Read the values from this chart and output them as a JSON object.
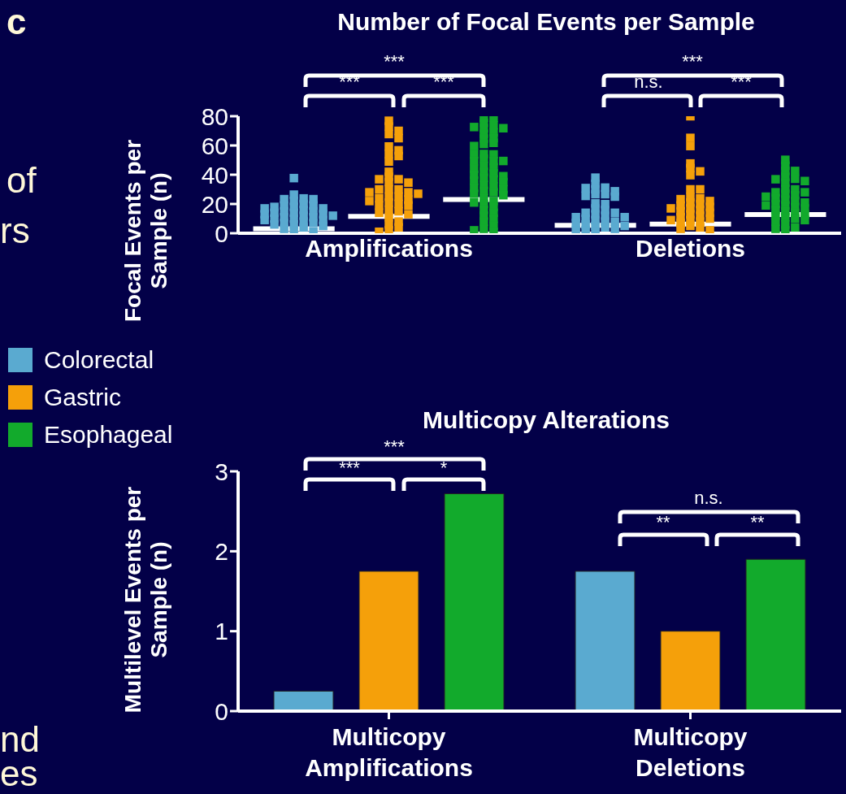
{
  "chart_data": [
    {
      "type": "scatter",
      "title": "Number of Focal Events per Sample",
      "ylabel": "Focal Events per Sample (n)",
      "categories": [
        "Amplifications",
        "Deletions"
      ],
      "ylim": [
        0,
        80
      ],
      "yticks": [
        0,
        20,
        40,
        60,
        80
      ],
      "grid": false,
      "legend": "bottom left",
      "marker": "square",
      "annotations": [
        "***",
        "***",
        "***",
        "***",
        "n.s.",
        "***",
        "c",
        "of",
        "rs",
        "nd",
        "es"
      ],
      "ref_lines": [
        {
          "axis": "y",
          "value": 3,
          "color": "#ffffff"
        },
        {
          "axis": "y",
          "value": 11.5,
          "color": "#ffffff"
        },
        {
          "axis": "y",
          "value": 23,
          "color": "#ffffff"
        },
        {
          "axis": "y",
          "value": 5.4,
          "color": "#ffffff"
        },
        {
          "axis": "y",
          "value": 6.2,
          "color": "#ffffff"
        },
        {
          "axis": "y",
          "value": 12.8,
          "color": "#ffffff"
        }
      ],
      "series": [
        {
          "name": "Colorectal",
          "color": "#5aaad0",
          "x": [
            "Amplifications",
            "Amplifications",
            "Amplifications",
            "Amplifications",
            "Amplifications",
            "Amplifications",
            "Amplifications",
            "Amplifications",
            "Amplifications",
            "Amplifications",
            "Amplifications",
            "Amplifications",
            "Amplifications",
            "Amplifications",
            "Amplifications",
            "Amplifications",
            "Amplifications",
            "Amplifications",
            "Amplifications",
            "Amplifications",
            "Amplifications",
            "Amplifications",
            "Amplifications",
            "Amplifications",
            "Amplifications",
            "Amplifications",
            "Amplifications",
            "Amplifications",
            "Amplifications",
            "Amplifications",
            "Amplifications",
            "Amplifications",
            "Amplifications",
            "Amplifications",
            "Amplifications",
            "Amplifications",
            "Amplifications",
            "Amplifications",
            "Deletions",
            "Deletions",
            "Deletions",
            "Deletions",
            "Deletions",
            "Deletions",
            "Deletions",
            "Deletions",
            "Deletions",
            "Deletions",
            "Deletions",
            "Deletions",
            "Deletions",
            "Deletions",
            "Deletions",
            "Deletions",
            "Deletions",
            "Deletions",
            "Deletions",
            "Deletions",
            "Deletions",
            "Deletions",
            "Deletions",
            "Deletions",
            "Deletions",
            "Deletions",
            "Deletions",
            "Deletions",
            "Deletions",
            "Deletions",
            "Deletions",
            "Deletions",
            "Deletions"
          ],
          "values": [
            37.7,
            26.4,
            23.8,
            23.3,
            22.1,
            23.3,
            19,
            20,
            19,
            18,
            18,
            17,
            16,
            15,
            17,
            15,
            14,
            13,
            14,
            12,
            13,
            11,
            12,
            10,
            11,
            10,
            9,
            8,
            9,
            7,
            6,
            7,
            5,
            6,
            4,
            3,
            2,
            1,
            38,
            33.8,
            30.9,
            28.7,
            30,
            31.2,
            26.7,
            26.7,
            25,
            25.5,
            19.9,
            20.4,
            15.9,
            17,
            14,
            13,
            14,
            12,
            11,
            10,
            11,
            9,
            8,
            7,
            8,
            6,
            5,
            4,
            5,
            3,
            2,
            1,
            2
          ]
        },
        {
          "name": "Gastric",
          "color": "#f5a00a",
          "x": [
            "Amplifications",
            "Amplifications",
            "Amplifications",
            "Amplifications",
            "Amplifications",
            "Amplifications",
            "Amplifications",
            "Amplifications",
            "Amplifications",
            "Amplifications",
            "Amplifications",
            "Amplifications",
            "Amplifications",
            "Amplifications",
            "Amplifications",
            "Amplifications",
            "Amplifications",
            "Amplifications",
            "Amplifications",
            "Amplifications",
            "Amplifications",
            "Amplifications",
            "Amplifications",
            "Amplifications",
            "Amplifications",
            "Amplifications",
            "Amplifications",
            "Amplifications",
            "Amplifications",
            "Amplifications",
            "Amplifications",
            "Amplifications",
            "Amplifications",
            "Amplifications",
            "Amplifications",
            "Amplifications",
            "Amplifications",
            "Amplifications",
            "Amplifications",
            "Amplifications",
            "Amplifications",
            "Deletions",
            "Deletions",
            "Deletions",
            "Deletions",
            "Deletions",
            "Deletions",
            "Deletions",
            "Deletions",
            "Deletions",
            "Deletions",
            "Deletions",
            "Deletions",
            "Deletions",
            "Deletions",
            "Deletions",
            "Deletions",
            "Deletions",
            "Deletions",
            "Deletions",
            "Deletions",
            "Deletions",
            "Deletions",
            "Deletions",
            "Deletions",
            "Deletions",
            "Deletions",
            "Deletions",
            "Deletions",
            "Deletions",
            "Deletions",
            "Deletions",
            "Deletions",
            "Deletions",
            "Deletions"
          ],
          "values": [
            76.9,
            73,
            70,
            67.8,
            65,
            59.3,
            56.7,
            54.2,
            52.8,
            49,
            42,
            38.6,
            36.9,
            36.9,
            34.6,
            35,
            30,
            30,
            30,
            28,
            27,
            28,
            25,
            23,
            24,
            25,
            22,
            19,
            20,
            21,
            19,
            16,
            14,
            15,
            13,
            11,
            8,
            6,
            4,
            2,
            1,
            65.2,
            59.6,
            47.7,
            44.5,
            42.3,
            39.7,
            30,
            23.3,
            23.8,
            24.7,
            21,
            20,
            22,
            19,
            17,
            18,
            16,
            17,
            15,
            13,
            12,
            14,
            11,
            9,
            10,
            8,
            9,
            7,
            5,
            4,
            3,
            2,
            80,
            30
          ]
        },
        {
          "name": "Esophageal",
          "color": "#12aa2c",
          "x": [
            "Amplifications",
            "Amplifications",
            "Amplifications",
            "Amplifications",
            "Amplifications",
            "Amplifications",
            "Amplifications",
            "Amplifications",
            "Amplifications",
            "Amplifications",
            "Amplifications",
            "Amplifications",
            "Amplifications",
            "Amplifications",
            "Amplifications",
            "Amplifications",
            "Amplifications",
            "Amplifications",
            "Amplifications",
            "Amplifications",
            "Amplifications",
            "Amplifications",
            "Amplifications",
            "Amplifications",
            "Amplifications",
            "Amplifications",
            "Amplifications",
            "Amplifications",
            "Amplifications",
            "Amplifications",
            "Amplifications",
            "Amplifications",
            "Amplifications",
            "Amplifications",
            "Amplifications",
            "Amplifications",
            "Amplifications",
            "Amplifications",
            "Amplifications",
            "Amplifications",
            "Amplifications",
            "Amplifications",
            "Amplifications",
            "Amplifications",
            "Amplifications",
            "Amplifications",
            "Amplifications",
            "Amplifications",
            "Amplifications",
            "Amplifications",
            "Amplifications",
            "Amplifications",
            "Amplifications",
            "Amplifications",
            "Deletions",
            "Deletions",
            "Deletions",
            "Deletions",
            "Deletions",
            "Deletions",
            "Deletions",
            "Deletions",
            "Deletions",
            "Deletions",
            "Deletions",
            "Deletions",
            "Deletions",
            "Deletions",
            "Deletions",
            "Deletions",
            "Deletions",
            "Deletions",
            "Deletions",
            "Deletions",
            "Deletions",
            "Deletions",
            "Deletions",
            "Deletions",
            "Deletions",
            "Deletions",
            "Deletions",
            "Deletions",
            "Deletions",
            "Deletions",
            "Deletions",
            "Deletions",
            "Deletions",
            "Deletions",
            "Deletions",
            "Deletions",
            "Deletions",
            "Deletions"
          ],
          "values": [
            79,
            79,
            75.5,
            73.8,
            72.6,
            71.8,
            71.8,
            68,
            69,
            64.7,
            65,
            61,
            61.8,
            59.6,
            53.9,
            53.9,
            54.2,
            51,
            49.4,
            49.4,
            49.4,
            46,
            45,
            44,
            41,
            40,
            42,
            39,
            37,
            36,
            35,
            38,
            33,
            32,
            30,
            31,
            28,
            27,
            26,
            29,
            24,
            22,
            20,
            21,
            18,
            16,
            14,
            12,
            10,
            8,
            5,
            3,
            2,
            1,
            50.2,
            46.2,
            42.6,
            42.6,
            38.6,
            37.2,
            35.7,
            36.9,
            34.6,
            30,
            30.4,
            28,
            27,
            26,
            28,
            25,
            23,
            22,
            24,
            21,
            20,
            19,
            18,
            17,
            19,
            15,
            14,
            16,
            13,
            12,
            10,
            9,
            11,
            8,
            6,
            4,
            3,
            2
          ]
        }
      ]
    },
    {
      "type": "bar",
      "title": "Multicopy Alterations",
      "ylabel": "Multilevel Events per Sample (n)",
      "categories": [
        "Multicopy Amplifications",
        "Multicopy Deletions"
      ],
      "ylim": [
        0,
        3
      ],
      "yticks": [
        0,
        1,
        2,
        3
      ],
      "grid": false,
      "annotations": [
        "***",
        "***",
        "*",
        "n.s.",
        "**",
        "**"
      ],
      "series": [
        {
          "color": "#5aaad0",
          "values": [
            0.25,
            1.75
          ]
        },
        {
          "color": "#f5a00a",
          "values": [
            1.75,
            1.0
          ]
        },
        {
          "color": "#12aa2c",
          "values": [
            2.72,
            1.9
          ]
        }
      ]
    }
  ]
}
